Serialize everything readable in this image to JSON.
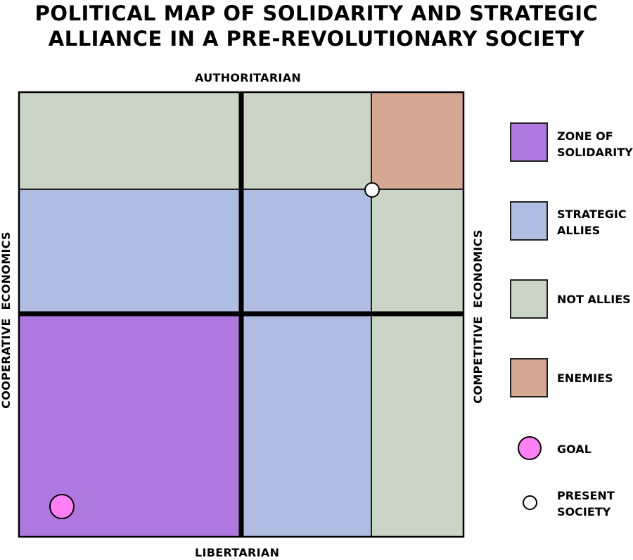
{
  "title": {
    "line1": "POLITICAL MAP OF SOLIDARITY AND STRATEGIC",
    "line2": "ALLIANCE IN A PRE-REVOLUTIONARY SOCIETY"
  },
  "axes": {
    "top": "AUTHORITARIAN",
    "bottom": "LIBERTARIAN",
    "left": "COOPERATIVE  ECONOMICS",
    "right": "COMPETITIVE  ECONOMICS"
  },
  "colors": {
    "solidarity": "#ae78e0",
    "allies": "#b0bde2",
    "not_allies": "#cad5c5",
    "enemies": "#d4a892",
    "goal": "#ff80f4",
    "present": "#ffffff",
    "line": "#000000"
  },
  "legend": {
    "solidarity": {
      "line1": "ZONE OF",
      "line2": "SOLIDARITY"
    },
    "allies": {
      "line1": "STRATEGIC",
      "line2": "ALLIES"
    },
    "not_allies": {
      "line1": "NOT ALLIES"
    },
    "enemies": {
      "line1": "ENEMIES"
    },
    "goal": {
      "line1": "GOAL"
    },
    "present": {
      "line1": "PRESENT",
      "line2": "SOCIETY"
    }
  }
}
